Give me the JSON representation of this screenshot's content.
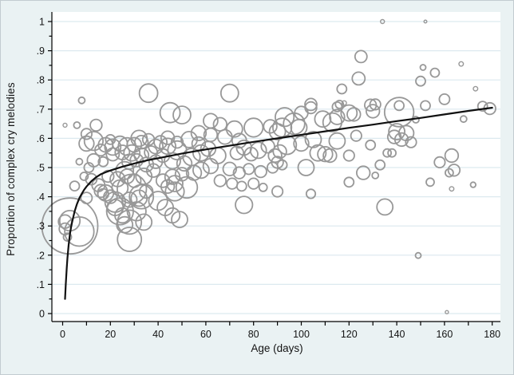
{
  "chart_data": {
    "type": "scatter",
    "subtype": "bubble-plot-with-fit-curve",
    "title": "",
    "xlabel": "Age (days)",
    "ylabel": "Proportion of complex cry melodies",
    "xlim": [
      0,
      180
    ],
    "ylim": [
      0,
      1
    ],
    "grid": "horizontal",
    "legend_position": "none",
    "x_tick_values": [
      0,
      20,
      40,
      60,
      80,
      100,
      120,
      140,
      160,
      180
    ],
    "x_tick_labels": [
      "0",
      "20",
      "40",
      "60",
      "80",
      "100",
      "120",
      "140",
      "160",
      "180"
    ],
    "x_minor_tick_step": 10,
    "y_tick_values": [
      0,
      0.1,
      0.2,
      0.3,
      0.4,
      0.5,
      0.6,
      0.7,
      0.8,
      0.9,
      1
    ],
    "y_tick_labels": [
      "0",
      ".1",
      ".2",
      ".3",
      ".4",
      ".5",
      ".6",
      ".7",
      ".8",
      ".9",
      "1"
    ],
    "y_minor_tick_step": 0.05,
    "bubble_style": {
      "stroke": "#989898",
      "fill": "none",
      "stroke_width": 1.8
    },
    "fit_curve_style": {
      "stroke": "#111111",
      "stroke_width": 2.2
    },
    "bubbles_format": "[age_days, proportion, radius_px]",
    "bubbles": [
      [
        134,
        1,
        2.5
      ],
      [
        152,
        1,
        1.8
      ],
      [
        125,
        0.88,
        7.5
      ],
      [
        124,
        0.805,
        8
      ],
      [
        117,
        0.769,
        6
      ],
      [
        151,
        0.843,
        3.5
      ],
      [
        156,
        0.825,
        5.5
      ],
      [
        150,
        0.796,
        6
      ],
      [
        167,
        0.855,
        2.8
      ],
      [
        173,
        0.77,
        2.8
      ],
      [
        160,
        0.734,
        6.5
      ],
      [
        36,
        0.755,
        11.5
      ],
      [
        70,
        0.755,
        11
      ],
      [
        8,
        0.73,
        4
      ],
      [
        104,
        0.716,
        7.5
      ],
      [
        116,
        0.716,
        5
      ],
      [
        118,
        0.721,
        2.8
      ],
      [
        129,
        0.714,
        7.3
      ],
      [
        131,
        0.716,
        6.7
      ],
      [
        141,
        0.712,
        6
      ],
      [
        152,
        0.712,
        6
      ],
      [
        176,
        0.71,
        6
      ],
      [
        179,
        0.702,
        7.3
      ],
      [
        104,
        0.705,
        7.3
      ],
      [
        115,
        0.708,
        6
      ],
      [
        45,
        0.688,
        12.5
      ],
      [
        50,
        0.68,
        11
      ],
      [
        122,
        0.682,
        8.3
      ],
      [
        130,
        0.693,
        8.3
      ],
      [
        141,
        0.69,
        18.3
      ],
      [
        93,
        0.673,
        11.7
      ],
      [
        100,
        0.687,
        8.3
      ],
      [
        109,
        0.666,
        10
      ],
      [
        115,
        0.673,
        9.3
      ],
      [
        120,
        0.687,
        10
      ],
      [
        148,
        0.664,
        4
      ],
      [
        168,
        0.666,
        4
      ],
      [
        1,
        0.645,
        2.5
      ],
      [
        6,
        0.645,
        4
      ],
      [
        14,
        0.645,
        7.3
      ],
      [
        97,
        0.65,
        13.3
      ],
      [
        92,
        0.637,
        11.7
      ],
      [
        99,
        0.637,
        10
      ],
      [
        90,
        0.623,
        10
      ],
      [
        113,
        0.655,
        11.7
      ],
      [
        62,
        0.66,
        9
      ],
      [
        66,
        0.648,
        8.3
      ],
      [
        10,
        0.615,
        6.7
      ],
      [
        10,
        0.582,
        9.3
      ],
      [
        13,
        0.591,
        11.7
      ],
      [
        20,
        0.596,
        6
      ],
      [
        32,
        0.6,
        10
      ],
      [
        36,
        0.596,
        7.3
      ],
      [
        18,
        0.578,
        9
      ],
      [
        21,
        0.57,
        10
      ],
      [
        24,
        0.582,
        9.3
      ],
      [
        27,
        0.572,
        11
      ],
      [
        30,
        0.578,
        9
      ],
      [
        33,
        0.587,
        8.3
      ],
      [
        39,
        0.572,
        9
      ],
      [
        41,
        0.587,
        8
      ],
      [
        44,
        0.602,
        8.3
      ],
      [
        48,
        0.587,
        7.3
      ],
      [
        44,
        0.573,
        10
      ],
      [
        48,
        0.559,
        11.7
      ],
      [
        53,
        0.596,
        10
      ],
      [
        57,
        0.582,
        8.3
      ],
      [
        58,
        0.55,
        10
      ],
      [
        61,
        0.564,
        9.3
      ],
      [
        54,
        0.536,
        10.7
      ],
      [
        65,
        0.541,
        10
      ],
      [
        73,
        0.55,
        8.3
      ],
      [
        76,
        0.568,
        9.3
      ],
      [
        79,
        0.546,
        8.3
      ],
      [
        82,
        0.559,
        10
      ],
      [
        86,
        0.573,
        8.3
      ],
      [
        89,
        0.541,
        8.3
      ],
      [
        72,
        0.632,
        10
      ],
      [
        80,
        0.637,
        11.7
      ],
      [
        87,
        0.641,
        8.3
      ],
      [
        57,
        0.618,
        9.3
      ],
      [
        62,
        0.612,
        8.3
      ],
      [
        68,
        0.605,
        9
      ],
      [
        74,
        0.592,
        9
      ],
      [
        94,
        0.577,
        11.7
      ],
      [
        100,
        0.582,
        9.3
      ],
      [
        105,
        0.596,
        10
      ],
      [
        107,
        0.55,
        10
      ],
      [
        110,
        0.546,
        9.3
      ],
      [
        112,
        0.541,
        8.3
      ],
      [
        115,
        0.591,
        10
      ],
      [
        123,
        0.609,
        6.7
      ],
      [
        120,
        0.541,
        6.7
      ],
      [
        91,
        0.555,
        8.3
      ],
      [
        129,
        0.577,
        6
      ],
      [
        136,
        0.55,
        5
      ],
      [
        140,
        0.623,
        10
      ],
      [
        144,
        0.618,
        9.3
      ],
      [
        142,
        0.596,
        8.3
      ],
      [
        146,
        0.587,
        6.7
      ],
      [
        139,
        0.605,
        8.3
      ],
      [
        138,
        0.55,
        5
      ],
      [
        163,
        0.541,
        8.3
      ],
      [
        158,
        0.518,
        6.7
      ],
      [
        16,
        0.56,
        7.3
      ],
      [
        21,
        0.545,
        8
      ],
      [
        25,
        0.552,
        9
      ],
      [
        29,
        0.55,
        10
      ],
      [
        33,
        0.542,
        9
      ],
      [
        37,
        0.552,
        8
      ],
      [
        13,
        0.525,
        8
      ],
      [
        17,
        0.52,
        6
      ],
      [
        28,
        0.52,
        9.3
      ],
      [
        35,
        0.51,
        9
      ],
      [
        39,
        0.52,
        8.3
      ],
      [
        31,
        0.525,
        8
      ],
      [
        46,
        0.523,
        10
      ],
      [
        51,
        0.514,
        9.3
      ],
      [
        42,
        0.541,
        8.3
      ],
      [
        62,
        0.505,
        9.3
      ],
      [
        58,
        0.491,
        10
      ],
      [
        55,
        0.482,
        9.3
      ],
      [
        50,
        0.477,
        8.3
      ],
      [
        46,
        0.468,
        9.3
      ],
      [
        42,
        0.455,
        8.3
      ],
      [
        66,
        0.455,
        7.3
      ],
      [
        70,
        0.495,
        8.3
      ],
      [
        74,
        0.482,
        7.3
      ],
      [
        78,
        0.495,
        6.7
      ],
      [
        83,
        0.486,
        7.3
      ],
      [
        88,
        0.5,
        6.7
      ],
      [
        71,
        0.445,
        6.7
      ],
      [
        75,
        0.436,
        6
      ],
      [
        80,
        0.445,
        6.7
      ],
      [
        84,
        0.432,
        5
      ],
      [
        90,
        0.518,
        7.3
      ],
      [
        92,
        0.509,
        6
      ],
      [
        102,
        0.5,
        10
      ],
      [
        133,
        0.509,
        6
      ],
      [
        126,
        0.482,
        8.3
      ],
      [
        131,
        0.473,
        4
      ],
      [
        120,
        0.45,
        6
      ],
      [
        164,
        0.491,
        7.3
      ],
      [
        162,
        0.482,
        5
      ],
      [
        154,
        0.45,
        5
      ],
      [
        163,
        0.427,
        2.8
      ],
      [
        172,
        0.441,
        3.3
      ],
      [
        11,
        0.5,
        6
      ],
      [
        9,
        0.47,
        5
      ],
      [
        12,
        0.46,
        7
      ],
      [
        19,
        0.47,
        7.3
      ],
      [
        23,
        0.46,
        9.3
      ],
      [
        26,
        0.49,
        11
      ],
      [
        30,
        0.455,
        8.3
      ],
      [
        34,
        0.47,
        10
      ],
      [
        38,
        0.49,
        8.3
      ],
      [
        27,
        0.47,
        9
      ],
      [
        44,
        0.435,
        8.3
      ],
      [
        47,
        0.445,
        10
      ],
      [
        52,
        0.432,
        13.3
      ],
      [
        47,
        0.418,
        11.7
      ],
      [
        15,
        0.44,
        8
      ],
      [
        7,
        0.52,
        4
      ],
      [
        18,
        0.413,
        10
      ],
      [
        20,
        0.4,
        8.3
      ],
      [
        17,
        0.409,
        6.7
      ],
      [
        24,
        0.43,
        10
      ],
      [
        29,
        0.427,
        18.3
      ],
      [
        33,
        0.4,
        15
      ],
      [
        22,
        0.382,
        12.7
      ],
      [
        28,
        0.39,
        9.3
      ],
      [
        32,
        0.395,
        10
      ],
      [
        35,
        0.418,
        8.3
      ],
      [
        40,
        0.386,
        11.7
      ],
      [
        43,
        0.363,
        10
      ],
      [
        46,
        0.336,
        9.3
      ],
      [
        49,
        0.322,
        10
      ],
      [
        31,
        0.35,
        11.7
      ],
      [
        25,
        0.336,
        9.3
      ],
      [
        22,
        0.363,
        10
      ],
      [
        26,
        0.304,
        10
      ],
      [
        34,
        0.313,
        10
      ],
      [
        28,
        0.313,
        15
      ],
      [
        28,
        0.254,
        15
      ],
      [
        24,
        0.35,
        16.7
      ],
      [
        90,
        0.418,
        6.7
      ],
      [
        104,
        0.41,
        5.7
      ],
      [
        76,
        0.372,
        10.7
      ],
      [
        135,
        0.365,
        10
      ],
      [
        5,
        0.437,
        6
      ],
      [
        10,
        0.396,
        7
      ],
      [
        16,
        0.42,
        8
      ],
      [
        3,
        0.3,
        35
      ],
      [
        3,
        0.318,
        12.7
      ],
      [
        1,
        0.29,
        7.3
      ],
      [
        1,
        0.315,
        8.3
      ],
      [
        7,
        0.281,
        18.3
      ],
      [
        2,
        0.262,
        5
      ],
      [
        149,
        0.199,
        3.5
      ],
      [
        161,
        0.005,
        2
      ]
    ],
    "fit_curve_format": "[age_days, proportion]",
    "fit_curve": [
      [
        1,
        0.05
      ],
      [
        1.3,
        0.1
      ],
      [
        1.7,
        0.155
      ],
      [
        2,
        0.19
      ],
      [
        2.5,
        0.235
      ],
      [
        3,
        0.27
      ],
      [
        3.5,
        0.295
      ],
      [
        4,
        0.315
      ],
      [
        5,
        0.35
      ],
      [
        6,
        0.375
      ],
      [
        7,
        0.395
      ],
      [
        8,
        0.41
      ],
      [
        9,
        0.424
      ],
      [
        10,
        0.435
      ],
      [
        12,
        0.453
      ],
      [
        14,
        0.467
      ],
      [
        16,
        0.477
      ],
      [
        18,
        0.484
      ],
      [
        20,
        0.49
      ],
      [
        25,
        0.503
      ],
      [
        30,
        0.514
      ],
      [
        35,
        0.524
      ],
      [
        40,
        0.532
      ],
      [
        50,
        0.548
      ],
      [
        60,
        0.562
      ],
      [
        70,
        0.575
      ],
      [
        80,
        0.588
      ],
      [
        90,
        0.6
      ],
      [
        100,
        0.612
      ],
      [
        110,
        0.624
      ],
      [
        120,
        0.636
      ],
      [
        130,
        0.647
      ],
      [
        140,
        0.659
      ],
      [
        150,
        0.67
      ],
      [
        160,
        0.682
      ],
      [
        170,
        0.694
      ],
      [
        180,
        0.705
      ]
    ]
  },
  "colors": {
    "figure_background": "#eaf2f3",
    "plot_background": "#ffffff",
    "gridline": "#dce9ef",
    "axis_line": "#000000",
    "tick_text": "#141414",
    "bubble_stroke": "#989898",
    "fit_curve": "#111111"
  }
}
